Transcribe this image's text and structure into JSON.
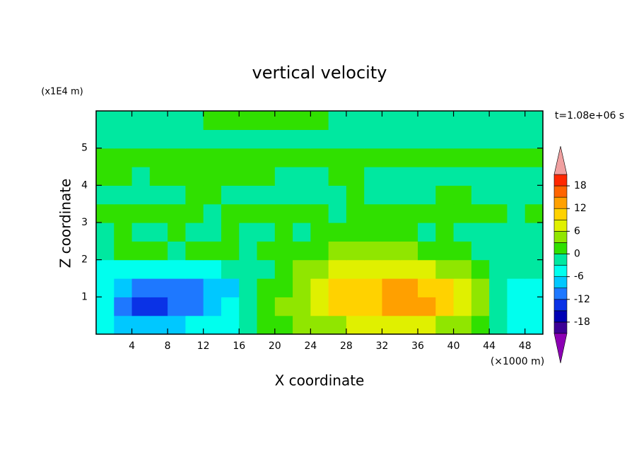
{
  "chart_data": {
    "type": "contour",
    "title": "vertical velocity",
    "x_label": "X coordinate",
    "y_label": "Z coordinate",
    "x_unit": "(×1000 m)",
    "y_unit": "(x1E4 m)",
    "time_label": "t=1.08e+06 s",
    "xlim": [
      0,
      50
    ],
    "ylim": [
      0,
      6
    ],
    "xticks": [
      4,
      8,
      12,
      16,
      20,
      24,
      28,
      32,
      36,
      40,
      44,
      48
    ],
    "yticks": [
      1,
      2,
      3,
      4,
      5
    ],
    "x": [
      1,
      3,
      5,
      7,
      9,
      11,
      13,
      15,
      17,
      19,
      21,
      23,
      25,
      27,
      29,
      31,
      33,
      35,
      37,
      39,
      41,
      43,
      45,
      47,
      49
    ],
    "y": [
      0.25,
      0.75,
      1.25,
      1.75,
      2.25,
      2.75,
      3.25,
      3.75,
      4.25,
      4.75,
      5.25,
      5.75
    ],
    "z": [
      [
        -4,
        -7,
        -9,
        -9,
        -7,
        -6,
        -5,
        -4,
        -2,
        1,
        2,
        3,
        4,
        5,
        6,
        7,
        7,
        7,
        6,
        5,
        4,
        2,
        -3,
        -4,
        -4
      ],
      [
        -4,
        -10,
        -13,
        -13,
        -11,
        -10,
        -8,
        -5,
        -2,
        1,
        3,
        5,
        7,
        9,
        10,
        11,
        12,
        13,
        12,
        10,
        6,
        3,
        -3,
        -4,
        -4
      ],
      [
        -5,
        -9,
        -12,
        -11,
        -11,
        -10,
        -9,
        -7,
        -3,
        0,
        2,
        5,
        7,
        9,
        10,
        11,
        12,
        12,
        11,
        9,
        6,
        3,
        -2,
        -4,
        -4
      ],
      [
        -4,
        -5,
        -6,
        -4,
        -5,
        -5,
        -4,
        -3,
        -2,
        -1,
        1,
        3,
        5,
        6,
        7,
        7,
        8,
        7,
        6,
        5,
        3,
        1,
        -1,
        -2,
        -3
      ],
      [
        -1,
        1,
        1,
        2,
        -1,
        1,
        1,
        0,
        -1,
        1,
        1,
        2,
        2,
        3,
        3,
        4,
        3,
        3,
        2,
        2,
        1,
        -1,
        -1,
        -1,
        -2
      ],
      [
        -1,
        1,
        -1,
        -1,
        1,
        -1,
        -1,
        1,
        -1,
        -1,
        1,
        -1,
        1,
        1,
        1,
        1,
        1,
        1,
        -1,
        1,
        -1,
        -1,
        -1,
        -1,
        -1
      ],
      [
        1,
        1,
        1,
        1,
        1,
        1,
        -1,
        1,
        1,
        1,
        1,
        1,
        1,
        -1,
        1,
        1,
        1,
        1,
        1,
        1,
        1,
        1,
        1,
        -1,
        1
      ],
      [
        -1,
        -1,
        -1,
        -1,
        -1,
        1,
        1,
        -1,
        -1,
        -1,
        -1,
        -1,
        -1,
        -1,
        1,
        -1,
        -1,
        -1,
        -1,
        1,
        1,
        -1,
        -1,
        -1,
        -1
      ],
      [
        1,
        1,
        -1,
        1,
        1,
        1,
        1,
        1,
        1,
        1,
        -1,
        -1,
        -1,
        1,
        1,
        -1,
        -1,
        -1,
        -1,
        -1,
        -1,
        -1,
        -1,
        -1,
        -1
      ],
      [
        1,
        1,
        1,
        1,
        1,
        1,
        1,
        1,
        1,
        1,
        1,
        1,
        1,
        1,
        1,
        1,
        1,
        1,
        1,
        1,
        1,
        1,
        1,
        1,
        1
      ],
      [
        -1,
        -1,
        -1,
        -1,
        -1,
        -1,
        -1,
        -1,
        -1,
        -1,
        -1,
        -1,
        -1,
        -1,
        -1,
        -1,
        -1,
        -1,
        -1,
        -1,
        -1,
        -1,
        -1,
        -1,
        -1
      ],
      [
        -1,
        -1,
        -1,
        -1,
        -1,
        -1,
        1,
        1,
        1,
        1,
        1,
        1,
        1,
        -1,
        -1,
        -1,
        -1,
        -1,
        -1,
        -1,
        -1,
        -1,
        -1,
        -1,
        -1
      ]
    ],
    "levels": [
      -21,
      -18,
      -15,
      -12,
      -9,
      -6,
      -3,
      0,
      3,
      6,
      9,
      12,
      15,
      18,
      21
    ],
    "colors": [
      "#8c00b4",
      "#3c0096",
      "#0000b4",
      "#0a32e6",
      "#1e78ff",
      "#00c8ff",
      "#00ffee",
      "#00e8a0",
      "#30e000",
      "#90e600",
      "#e0f000",
      "#ffd200",
      "#ffa000",
      "#ff6400",
      "#ff2800",
      "#f0a0a0"
    ],
    "colorbar_ticks": [
      -18,
      -12,
      -6,
      0,
      6,
      12,
      18
    ]
  }
}
